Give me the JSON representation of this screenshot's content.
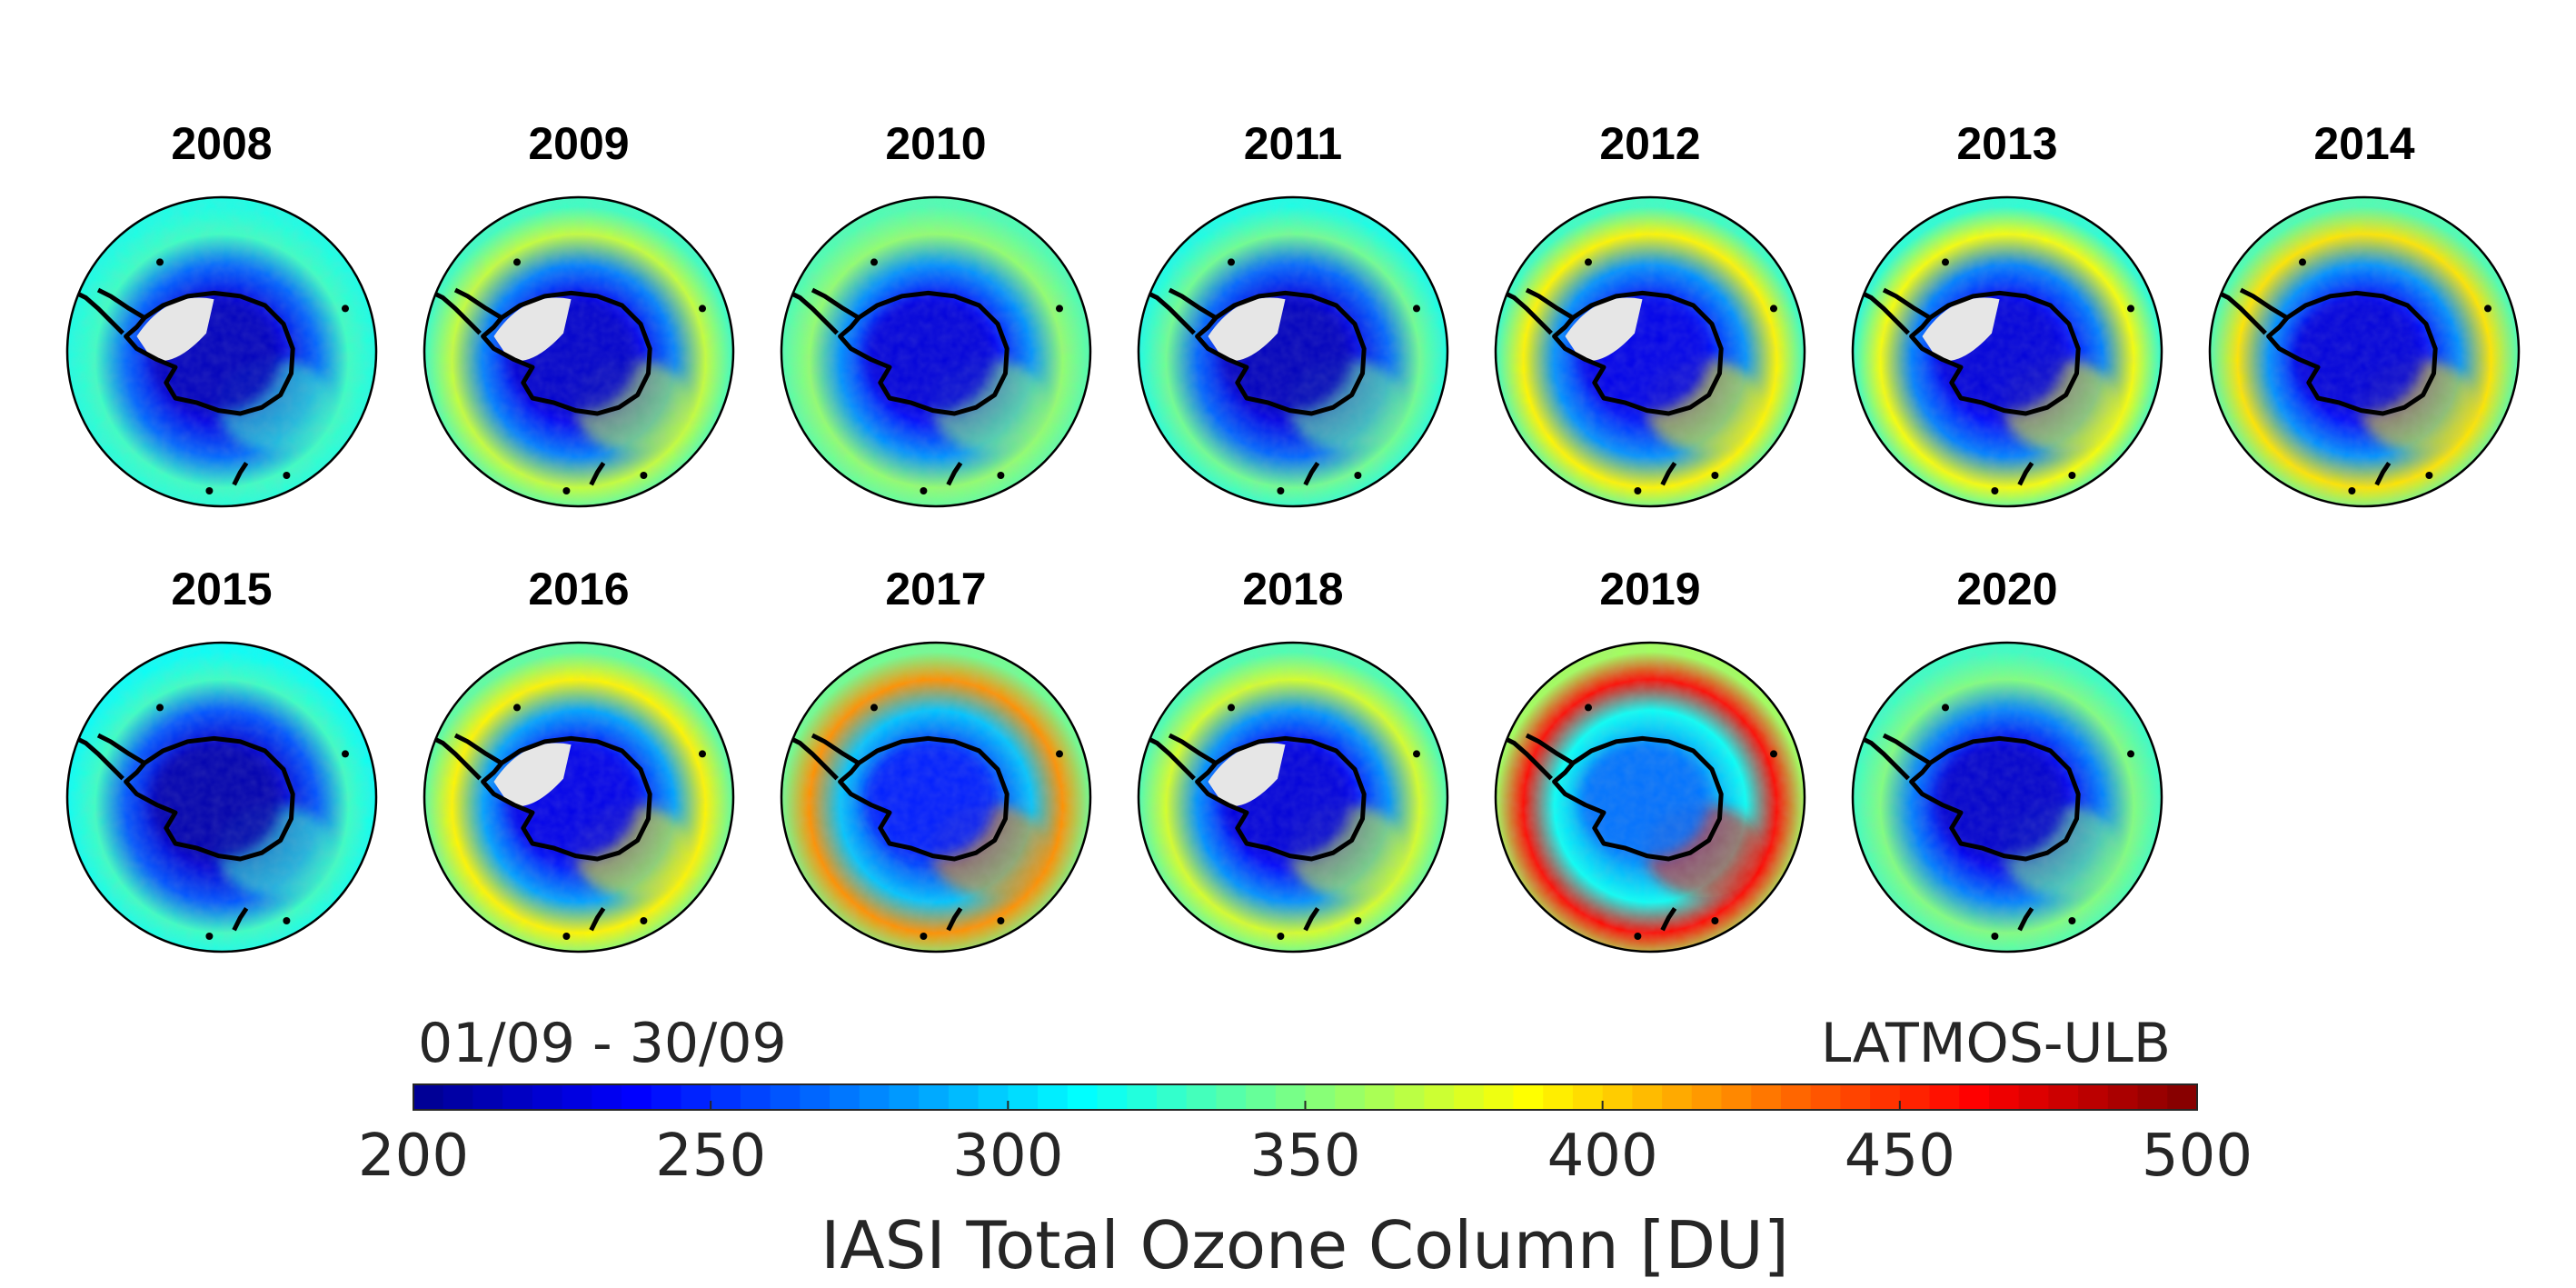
{
  "chart_data": {
    "type": "heatmap",
    "projection": "south-polar stereographic",
    "period_label": "01/09 - 30/09",
    "source_label": "LATMOS-ULB",
    "colorbar": {
      "title": "IASI Total Ozone Column [DU]",
      "min": 200,
      "max": 500,
      "ticks": [
        200,
        250,
        300,
        350,
        400,
        450,
        500
      ],
      "tick_labels": [
        "200",
        "250",
        "300",
        "350",
        "400",
        "450",
        "500"
      ],
      "colormap": "jet",
      "colors": [
        "#00008f",
        "#0000ff",
        "#0080ff",
        "#00ffff",
        "#80ff80",
        "#ffff00",
        "#ff8000",
        "#ff0000",
        "#800000"
      ]
    },
    "panels": [
      {
        "year": "2008",
        "hole_min_du": 215,
        "collar_max_du": 330,
        "edge_du": 320,
        "no_data": true
      },
      {
        "year": "2009",
        "hole_min_du": 220,
        "collar_max_du": 370,
        "edge_du": 330,
        "no_data": true
      },
      {
        "year": "2010",
        "hole_min_du": 225,
        "collar_max_du": 355,
        "edge_du": 335,
        "no_data": false
      },
      {
        "year": "2011",
        "hole_min_du": 215,
        "collar_max_du": 345,
        "edge_du": 320,
        "no_data": true
      },
      {
        "year": "2012",
        "hole_min_du": 230,
        "collar_max_du": 390,
        "edge_du": 330,
        "no_data": true
      },
      {
        "year": "2013",
        "hole_min_du": 225,
        "collar_max_du": 385,
        "edge_du": 325,
        "no_data": true
      },
      {
        "year": "2014",
        "hole_min_du": 225,
        "collar_max_du": 395,
        "edge_du": 335,
        "no_data": false
      },
      {
        "year": "2015",
        "hole_min_du": 210,
        "collar_max_du": 330,
        "edge_du": 315,
        "no_data": false
      },
      {
        "year": "2016",
        "hole_min_du": 230,
        "collar_max_du": 390,
        "edge_du": 340,
        "no_data": true
      },
      {
        "year": "2017",
        "hole_min_du": 245,
        "collar_max_du": 420,
        "edge_du": 345,
        "no_data": false
      },
      {
        "year": "2018",
        "hole_min_du": 225,
        "collar_max_du": 375,
        "edge_du": 335,
        "no_data": true
      },
      {
        "year": "2019",
        "hole_min_du": 270,
        "collar_max_du": 460,
        "edge_du": 360,
        "no_data": false
      },
      {
        "year": "2020",
        "hole_min_du": 220,
        "collar_max_du": 350,
        "edge_du": 330,
        "no_data": false
      }
    ]
  }
}
